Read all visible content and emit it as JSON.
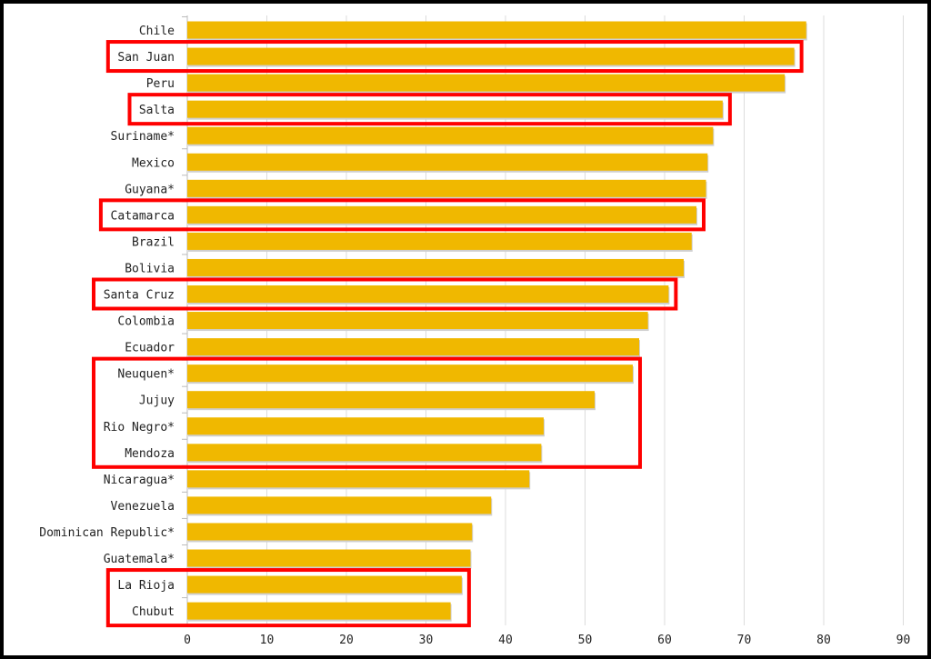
{
  "chart_data": {
    "type": "bar",
    "orientation": "horizontal",
    "title": "",
    "xlabel": "",
    "ylabel": "",
    "xlim": [
      0,
      90
    ],
    "xticks": [
      0,
      10,
      20,
      30,
      40,
      50,
      60,
      70,
      80,
      90
    ],
    "grid": true,
    "bar_color": "#F0B800",
    "highlight_color": "#FF0000",
    "categories": [
      "Chile",
      "San Juan",
      "Peru",
      "Salta",
      "Suriname*",
      "Mexico",
      "Guyana*",
      "Catamarca",
      "Brazil",
      "Bolivia",
      "Santa Cruz",
      "Colombia",
      "Ecuador",
      "Neuquen*",
      "Jujuy",
      "Rio Negro*",
      "Mendoza",
      "Nicaragua*",
      "Venezuela",
      "Dominican Republic*",
      "Guatemala*",
      "La Rioja",
      "Chubut"
    ],
    "values": [
      77.8,
      76.3,
      75.1,
      67.3,
      66.1,
      65.4,
      65.2,
      64.0,
      63.4,
      62.4,
      60.5,
      57.9,
      56.8,
      56.0,
      51.2,
      44.8,
      44.5,
      43.0,
      38.2,
      35.8,
      35.6,
      34.5,
      33.1
    ],
    "highlight_groups": [
      [
        "San Juan"
      ],
      [
        "Salta"
      ],
      [
        "Catamarca"
      ],
      [
        "Santa Cruz"
      ],
      [
        "Neuquen*",
        "Jujuy",
        "Rio Negro*",
        "Mendoza"
      ],
      [
        "La Rioja",
        "Chubut"
      ]
    ]
  }
}
